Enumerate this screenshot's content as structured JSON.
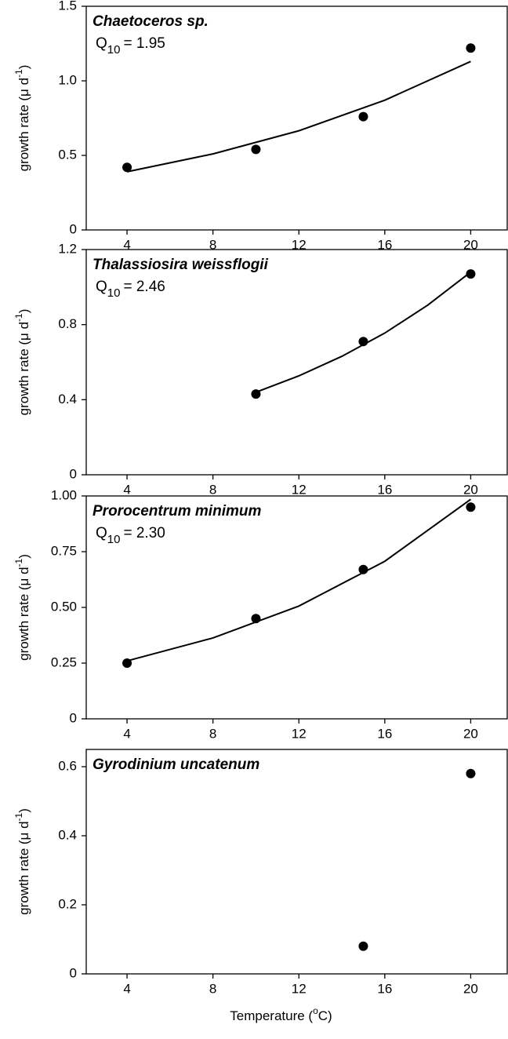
{
  "chart_data": [
    {
      "type": "scatter",
      "title": "Chaetoceros sp.",
      "annotation": [
        "Q",
        "10",
        "= 1.95"
      ],
      "ylabel": [
        "growth rate (μ d",
        "-1",
        ")"
      ],
      "x": [
        4,
        10,
        15,
        20
      ],
      "values": [
        0.42,
        0.54,
        0.76,
        1.22
      ],
      "fit": {
        "x": [
          4,
          8,
          12,
          16,
          20
        ],
        "values": [
          0.39,
          0.51,
          0.665,
          0.87,
          1.13
        ]
      },
      "xlim": [
        2.1,
        21.7
      ],
      "xticks": [
        4,
        8,
        12,
        16,
        20
      ],
      "ylim": [
        0,
        1.5
      ],
      "yticks": [
        0,
        0.5,
        {
          "value": 1,
          "label": "1.0"
        },
        1.5
      ],
      "color": "#000000"
    },
    {
      "type": "scatter",
      "title": "Thalassiosira weissflogii",
      "annotation": [
        "Q",
        "10",
        "= 2.46"
      ],
      "ylabel": [
        "growth rate (μ d",
        "-1",
        ")"
      ],
      "x": [
        10,
        15,
        20
      ],
      "values": [
        0.43,
        0.71,
        1.07
      ],
      "fit": {
        "x": [
          10,
          12,
          14,
          16,
          18,
          20
        ],
        "values": [
          0.44,
          0.527,
          0.631,
          0.755,
          0.904,
          1.08
        ]
      },
      "xlim": [
        2.1,
        21.7
      ],
      "xticks": [
        4,
        8,
        12,
        16,
        20
      ],
      "ylim": [
        0,
        1.2
      ],
      "yticks": [
        0,
        0.4,
        0.8,
        1.2
      ],
      "color": "#000000"
    },
    {
      "type": "scatter",
      "title": "Prorocentrum minimum",
      "annotation": [
        "Q",
        "10",
        "= 2.30"
      ],
      "ylabel": [
        "growth rate (μ d",
        "-1",
        ")"
      ],
      "x": [
        4,
        10,
        15,
        20
      ],
      "values": [
        0.25,
        0.45,
        0.67,
        0.95
      ],
      "fit": {
        "x": [
          4,
          8,
          12,
          16,
          20
        ],
        "values": [
          0.26,
          0.363,
          0.506,
          0.707,
          0.985
        ]
      },
      "xlim": [
        2.1,
        21.7
      ],
      "xticks": [
        4,
        8,
        12,
        16,
        20
      ],
      "ylim": [
        0,
        1
      ],
      "yticks": [
        0,
        0.25,
        {
          "value": 0.5,
          "label": "0.50"
        },
        0.75,
        {
          "value": 1,
          "label": "1.00"
        }
      ],
      "color": "#000000"
    },
    {
      "type": "scatter",
      "title": "Gyrodinium uncatenum",
      "ylabel": [
        "growth rate (μ d",
        "-1",
        ")"
      ],
      "xlabel": [
        "Temperature (",
        "o",
        "C)"
      ],
      "x": [
        15,
        20
      ],
      "values": [
        0.08,
        0.58
      ],
      "xlim": [
        2.1,
        21.7
      ],
      "xticks": [
        4,
        8,
        12,
        16,
        20
      ],
      "ylim": [
        0,
        0.65
      ],
      "yticks": [
        0,
        0.2,
        0.4,
        0.6
      ],
      "color": "#000000"
    }
  ]
}
